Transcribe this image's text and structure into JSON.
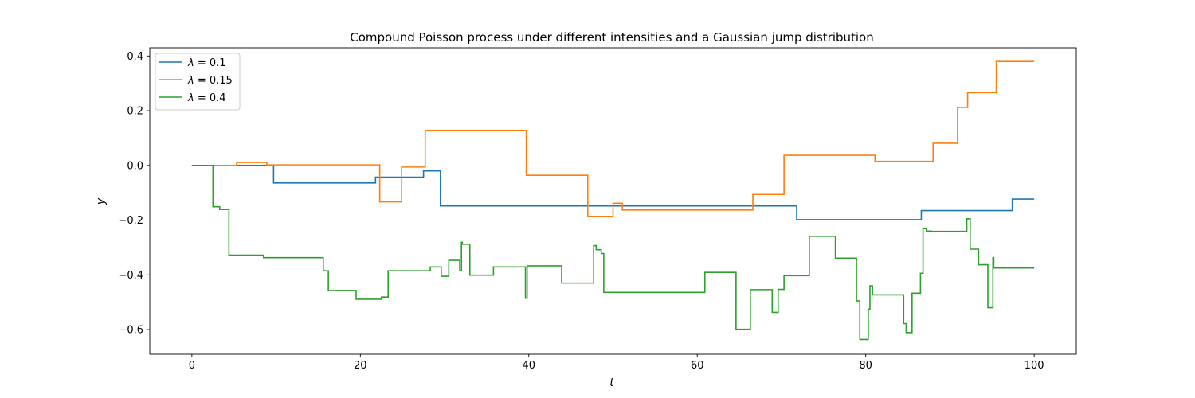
{
  "chart_data": {
    "type": "line",
    "title": "Compound Poisson process under different intensities and a Gaussian jump distribution",
    "xlabel": "t",
    "ylabel": "y",
    "xlim": [
      -5,
      105
    ],
    "ylim": [
      -0.69,
      0.43
    ],
    "xticks": [
      0,
      20,
      40,
      60,
      80,
      100
    ],
    "xtick_labels": [
      "0",
      "20",
      "40",
      "60",
      "80",
      "100"
    ],
    "yticks": [
      -0.6,
      -0.4,
      -0.2,
      0.0,
      0.2,
      0.4
    ],
    "ytick_labels": [
      "−0.6",
      "−0.4",
      "−0.2",
      "0.0",
      "0.2",
      "0.4"
    ],
    "grid": false,
    "legend_position": "top-left",
    "series": [
      {
        "name": "λ = 0.1",
        "legend_symbol": "λ",
        "legend_value": "= 0.1",
        "color": "#1f77b4",
        "step": "post",
        "x": [
          0,
          9.7,
          21.8,
          27.5,
          29.5,
          71.8,
          86.6,
          97.4,
          100
        ],
        "y": [
          0.0,
          -0.064,
          -0.043,
          -0.02,
          -0.148,
          -0.198,
          -0.165,
          -0.123,
          -0.123
        ]
      },
      {
        "name": "λ = 0.15",
        "legend_symbol": "λ",
        "legend_value": "= 0.15",
        "color": "#ff7f0e",
        "step": "post",
        "x": [
          0,
          5.3,
          8.9,
          22.3,
          24.9,
          27.7,
          39.7,
          47.0,
          50.0,
          51.1,
          66.6,
          70.3,
          81.1,
          88.0,
          90.9,
          92.1,
          95.5,
          100
        ],
        "y": [
          0.0,
          0.011,
          0.002,
          -0.133,
          -0.006,
          0.128,
          -0.036,
          -0.186,
          -0.138,
          -0.163,
          -0.106,
          0.037,
          0.015,
          0.081,
          0.212,
          0.266,
          0.38,
          0.38
        ]
      },
      {
        "name": "λ = 0.4",
        "legend_symbol": "λ",
        "legend_value": "= 0.4",
        "color": "#2ca02c",
        "step": "post",
        "x": [
          0,
          2.5,
          3.3,
          4.4,
          8.5,
          15.6,
          16.2,
          19.5,
          22.5,
          23.3,
          28.3,
          29.6,
          30.0,
          30.5,
          31.8,
          32.0,
          32.1,
          32.5,
          33.0,
          35.8,
          39.6,
          39.8,
          43.9,
          47.7,
          48.0,
          48.6,
          48.9,
          60.9,
          64.6,
          66.3,
          68.9,
          69.6,
          70.0,
          70.3,
          73.3,
          76.4,
          78.9,
          79.3,
          80.3,
          80.5,
          80.8,
          81.2,
          84.5,
          84.8,
          85.5,
          86.5,
          86.8,
          87.2,
          87.8,
          92.0,
          92.4,
          93.4,
          94.5,
          95.1,
          95.2,
          100
        ],
        "y": [
          0.0,
          -0.151,
          -0.161,
          -0.328,
          -0.337,
          -0.385,
          -0.457,
          -0.489,
          -0.481,
          -0.385,
          -0.371,
          -0.405,
          -0.405,
          -0.347,
          -0.385,
          -0.281,
          -0.288,
          -0.288,
          -0.401,
          -0.371,
          -0.485,
          -0.367,
          -0.43,
          -0.293,
          -0.308,
          -0.322,
          -0.464,
          -0.391,
          -0.599,
          -0.454,
          -0.537,
          -0.453,
          -0.453,
          -0.403,
          -0.259,
          -0.339,
          -0.495,
          -0.636,
          -0.525,
          -0.44,
          -0.473,
          -0.473,
          -0.578,
          -0.611,
          -0.467,
          -0.394,
          -0.231,
          -0.24,
          -0.241,
          -0.195,
          -0.306,
          -0.363,
          -0.52,
          -0.337,
          -0.375,
          -0.375
        ]
      }
    ]
  }
}
